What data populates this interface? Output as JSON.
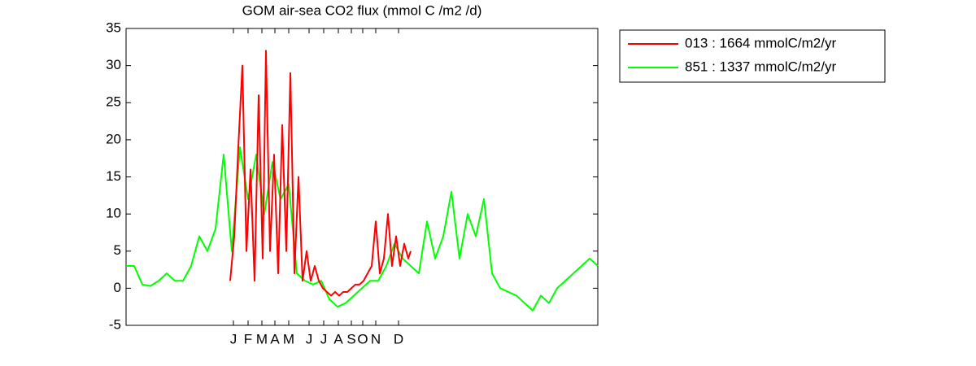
{
  "chart_data": {
    "type": "line",
    "title": "GOM  air-sea CO2 flux (mmol C /m2 /d)",
    "xlim": [
      0,
      580
    ],
    "xticks": [
      {
        "value": 132,
        "label": "J"
      },
      {
        "value": 150,
        "label": "F"
      },
      {
        "value": 167,
        "label": "M"
      },
      {
        "value": 183,
        "label": "A"
      },
      {
        "value": 200,
        "label": "M"
      },
      {
        "value": 225,
        "label": "J"
      },
      {
        "value": 243,
        "label": "J"
      },
      {
        "value": 261,
        "label": "A"
      },
      {
        "value": 277,
        "label": "S"
      },
      {
        "value": 291,
        "label": "O"
      },
      {
        "value": 307,
        "label": "N"
      },
      {
        "value": 335,
        "label": "D"
      }
    ],
    "ylim": [
      -5,
      35
    ],
    "yticks": [
      -5,
      0,
      5,
      10,
      15,
      20,
      25,
      30,
      35
    ],
    "legend": "outside-upper-right",
    "series": [
      {
        "name": "013 : 1664 mmolC/m2/yr",
        "color": "#ff0000",
        "x": [
          128,
          133,
          138,
          143,
          148,
          153,
          158,
          163,
          168,
          172,
          177,
          182,
          187,
          192,
          197,
          202,
          207,
          212,
          217,
          222,
          227,
          232,
          237,
          242,
          247,
          252,
          257,
          262,
          267,
          272,
          277,
          282,
          287,
          292,
          297,
          302,
          307,
          312,
          317,
          322,
          327,
          332,
          337,
          342,
          347,
          350
        ],
        "values": [
          1,
          7,
          19,
          30,
          5,
          16,
          1,
          26,
          4,
          32,
          5,
          18,
          2,
          22,
          5,
          29,
          2,
          15,
          1,
          5,
          1,
          3,
          1,
          0,
          -0.5,
          -1,
          -0.5,
          -1,
          -0.5,
          -0.5,
          0,
          0.5,
          0.5,
          1,
          2,
          3,
          9,
          2,
          4,
          10,
          3,
          7,
          3,
          6,
          4,
          5
        ]
      },
      {
        "name": "851 : 1337 mmolC/m2/yr",
        "color": "#00ff00",
        "x": [
          0,
          10,
          20,
          30,
          40,
          50,
          60,
          70,
          80,
          90,
          100,
          110,
          120,
          130,
          140,
          150,
          160,
          170,
          180,
          190,
          200,
          210,
          220,
          230,
          240,
          250,
          260,
          270,
          280,
          290,
          300,
          310,
          320,
          330,
          340,
          350,
          360,
          370,
          380,
          390,
          400,
          410,
          420,
          430,
          440,
          450,
          460,
          470,
          480,
          490,
          500,
          510,
          520,
          530,
          540,
          550,
          560,
          570,
          580
        ],
        "values": [
          3,
          3,
          0.5,
          0.3,
          1,
          2,
          1,
          1,
          3,
          7,
          5,
          8,
          18,
          5,
          19,
          12,
          18,
          10,
          17,
          12,
          14,
          2,
          1,
          0.5,
          1,
          -1.5,
          -2.5,
          -2,
          -1,
          0,
          1,
          1,
          3,
          6,
          4,
          3,
          2,
          9,
          4,
          7,
          13,
          4,
          10,
          7,
          12,
          2,
          0,
          -0.5,
          -1,
          -2,
          -3,
          -1,
          -2,
          0,
          1,
          2,
          3,
          4,
          3
        ]
      }
    ]
  }
}
